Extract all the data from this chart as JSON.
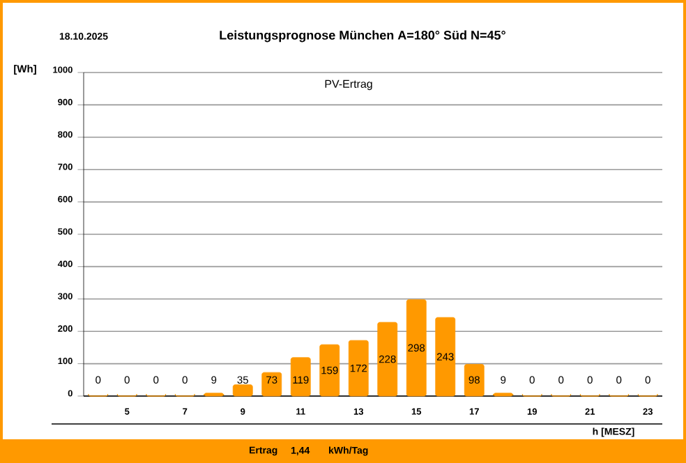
{
  "chart_data": {
    "type": "bar",
    "title": "Leistungsprognose München A=180° Süd N=45°",
    "subtitle": "PV-Ertrag",
    "xlabel": "h [MESZ]",
    "ylabel": "[Wh]",
    "annotations": [
      "18.10.2025",
      "Ertrag",
      "1,44",
      "kWh/Tag"
    ],
    "categories": [
      null,
      "5",
      null,
      "7",
      null,
      "9",
      null,
      "11",
      null,
      "13",
      null,
      "15",
      null,
      "17",
      null,
      "19",
      null,
      "21",
      null,
      "23"
    ],
    "values": [
      0,
      0,
      0,
      0,
      9,
      35,
      73,
      119,
      159,
      172,
      228,
      298,
      243,
      98,
      9,
      0,
      0,
      0,
      0,
      0
    ],
    "color": "#ff9900",
    "ylim": [
      0,
      1000
    ],
    "yticks": [
      0,
      100,
      200,
      300,
      400,
      500,
      600,
      700,
      800,
      900,
      1000
    ],
    "grid": "y",
    "data_labels": true
  }
}
